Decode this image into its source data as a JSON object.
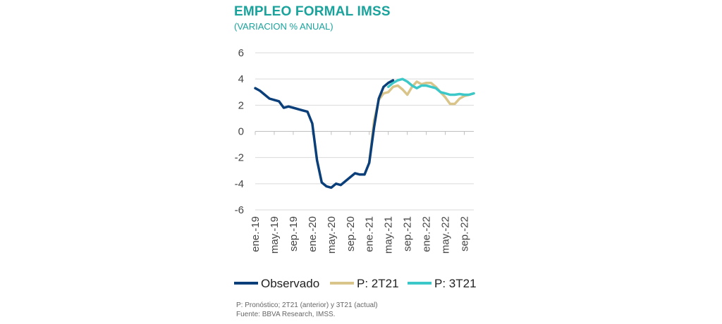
{
  "title": "EMPLEO FORMAL IMSS",
  "subtitle": "(VARIACION % ANUAL)",
  "footnote_1": "P: Pronóstico; 2T21 (anterior) y 3T21 (actual)",
  "footnote_2": "Fuente: BBVA Research, IMSS.",
  "chart_data": {
    "type": "line",
    "ylim": [
      -6,
      6
    ],
    "yticks": [
      6,
      4,
      2,
      0,
      -2,
      -4,
      -6
    ],
    "xlim": [
      0,
      46
    ],
    "xtick_labels": [
      "ene.-19",
      "may.-19",
      "sep.-19",
      "ene.-20",
      "may.-20",
      "sep.-20",
      "ene.-21",
      "may.-21",
      "sep.-21",
      "ene.-22",
      "may.-22",
      "sep.-22"
    ],
    "xtick_index": [
      0,
      4,
      8,
      12,
      16,
      20,
      24,
      28,
      32,
      36,
      40,
      44
    ],
    "grid": true,
    "legend_position": "bottom",
    "series": [
      {
        "name": "Observado",
        "color": "#0b3f7a",
        "x": [
          0,
          1,
          2,
          3,
          4,
          5,
          6,
          7,
          8,
          9,
          10,
          11,
          12,
          13,
          14,
          15,
          16,
          17,
          18,
          19,
          20,
          21,
          22,
          23,
          24,
          25,
          26,
          27,
          28,
          29
        ],
        "y": [
          3.3,
          3.1,
          2.8,
          2.5,
          2.4,
          2.3,
          1.8,
          1.9,
          1.8,
          1.7,
          1.6,
          1.5,
          0.6,
          -2.2,
          -3.9,
          -4.2,
          -4.3,
          -4.0,
          -4.1,
          -3.8,
          -3.5,
          -3.2,
          -3.3,
          -3.3,
          -2.4,
          0.3,
          2.5,
          3.4,
          3.7,
          3.9
        ]
      },
      {
        "name": "P: 2T21",
        "color": "#d9c48a",
        "x": [
          24,
          25,
          26,
          27,
          28,
          29,
          30,
          31,
          32,
          33,
          34,
          35,
          36,
          37,
          38,
          39,
          40,
          41,
          42,
          43,
          44,
          45,
          46
        ],
        "y": [
          -2.4,
          0.8,
          2.4,
          2.9,
          3.0,
          3.4,
          3.5,
          3.2,
          2.8,
          3.4,
          3.8,
          3.6,
          3.7,
          3.7,
          3.4,
          3.0,
          2.6,
          2.1,
          2.1,
          2.5,
          2.7,
          2.8,
          2.9
        ]
      },
      {
        "name": "P: 3T21",
        "color": "#3cc8c8",
        "x": [
          28,
          29,
          30,
          31,
          32,
          33,
          34,
          35,
          36,
          37,
          38,
          39,
          40,
          41,
          42,
          43,
          44,
          45,
          46
        ],
        "y": [
          3.4,
          3.7,
          3.9,
          4.0,
          3.8,
          3.5,
          3.3,
          3.5,
          3.5,
          3.4,
          3.3,
          3.0,
          2.9,
          2.8,
          2.8,
          2.85,
          2.8,
          2.8,
          2.9
        ]
      }
    ]
  }
}
